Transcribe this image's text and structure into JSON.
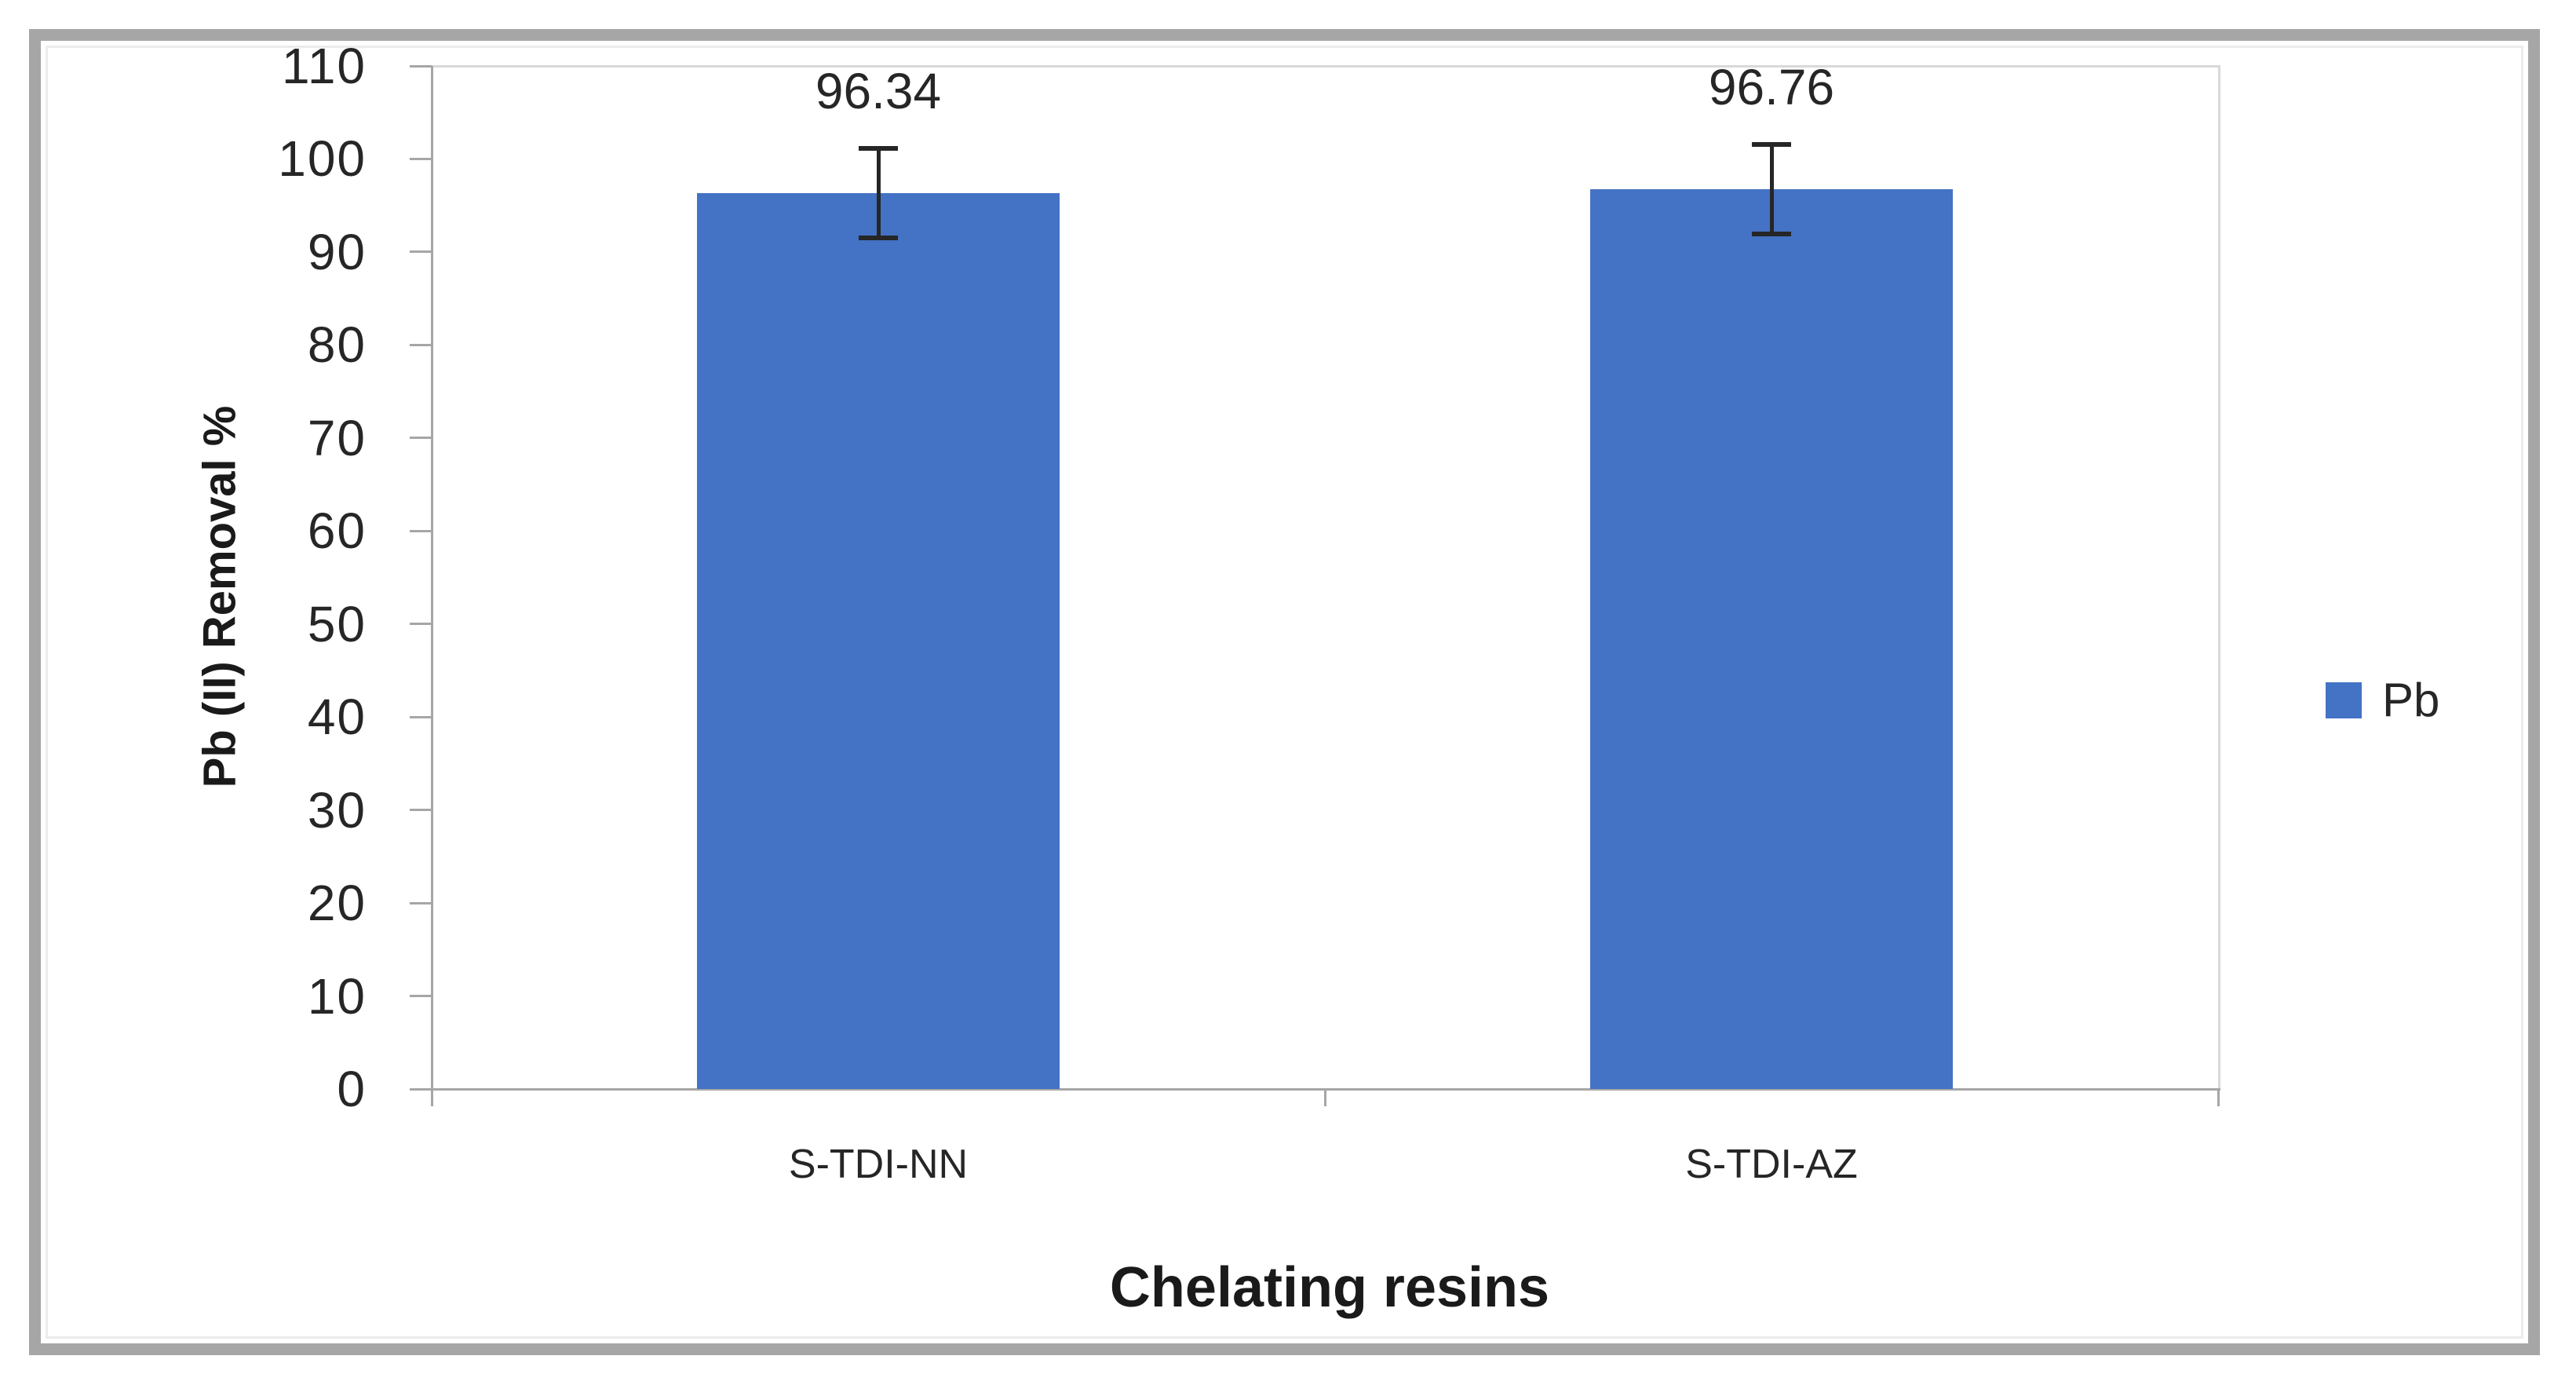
{
  "chart_data": {
    "type": "bar",
    "title": "",
    "categories": [
      "S-TDI-NN",
      "S-TDI-AZ"
    ],
    "series": [
      {
        "name": "Pb",
        "values": [
          96.34,
          96.76
        ],
        "error_y": 4.8,
        "color": "#4472C4"
      }
    ],
    "data_labels": [
      "96.34",
      "96.76"
    ],
    "xlabel": "Chelating resins",
    "ylabel": "Pb (II) Removal %",
    "ylim": [
      0,
      110
    ],
    "yticks": [
      0,
      10,
      20,
      30,
      40,
      50,
      60,
      70,
      80,
      90,
      100,
      110
    ],
    "grid": false,
    "legend": {
      "position": "right",
      "entries": [
        {
          "label": "Pb",
          "color": "#4472C4"
        }
      ]
    }
  },
  "colors": {
    "bar": "#4472C4",
    "axis": "#A6A6A6",
    "plot_border": "#D9D9D9",
    "text": "#262626",
    "frame": "#A6A6A6"
  }
}
